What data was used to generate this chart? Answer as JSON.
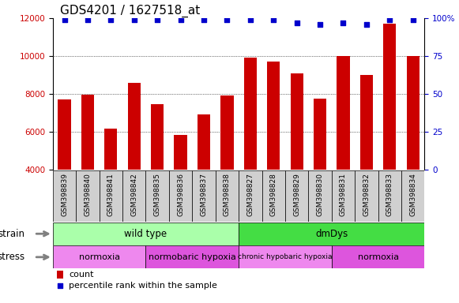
{
  "title": "GDS4201 / 1627518_at",
  "samples": [
    "GSM398839",
    "GSM398840",
    "GSM398841",
    "GSM398842",
    "GSM398835",
    "GSM398836",
    "GSM398837",
    "GSM398838",
    "GSM398827",
    "GSM398828",
    "GSM398829",
    "GSM398830",
    "GSM398831",
    "GSM398832",
    "GSM398833",
    "GSM398834"
  ],
  "counts": [
    7700,
    7950,
    6150,
    8600,
    7450,
    5850,
    6900,
    7900,
    9900,
    9700,
    9100,
    7750,
    10000,
    9000,
    11700,
    10000
  ],
  "percentile_ranks": [
    99,
    99,
    99,
    99,
    99,
    99,
    99,
    99,
    99,
    99,
    97,
    96,
    97,
    96,
    99,
    99
  ],
  "bar_color": "#cc0000",
  "dot_color": "#0000cc",
  "ylim_left": [
    4000,
    12000
  ],
  "ylim_right": [
    0,
    100
  ],
  "yticks_left": [
    4000,
    6000,
    8000,
    10000,
    12000
  ],
  "yticks_right": [
    0,
    25,
    50,
    75,
    100
  ],
  "yright_labels": [
    "0",
    "25",
    "50",
    "75",
    "100%"
  ],
  "grid_values": [
    6000,
    8000,
    10000
  ],
  "strain_groups": [
    {
      "label": "wild type",
      "start": 0,
      "end": 8,
      "color": "#aaffaa"
    },
    {
      "label": "dmDys",
      "start": 8,
      "end": 16,
      "color": "#44dd44"
    }
  ],
  "stress_groups": [
    {
      "label": "normoxia",
      "start": 0,
      "end": 4,
      "color": "#ee88ee"
    },
    {
      "label": "normobaric hypoxia",
      "start": 4,
      "end": 8,
      "color": "#dd55dd"
    },
    {
      "label": "chronic hypobaric hypoxia",
      "start": 8,
      "end": 12,
      "color": "#ee88ee"
    },
    {
      "label": "normoxia",
      "start": 12,
      "end": 16,
      "color": "#dd55dd"
    }
  ],
  "stress_fontsizes": [
    8,
    8,
    6.5,
    8
  ],
  "strain_label": "strain",
  "stress_label": "stress",
  "legend_count_label": "count",
  "legend_pct_label": "percentile rank within the sample",
  "bg_color": "#ffffff",
  "title_fontsize": 11,
  "tick_fontsize": 7.5,
  "label_fontsize": 6.5,
  "sample_box_color": "#d0d0d0",
  "bar_width": 0.55
}
